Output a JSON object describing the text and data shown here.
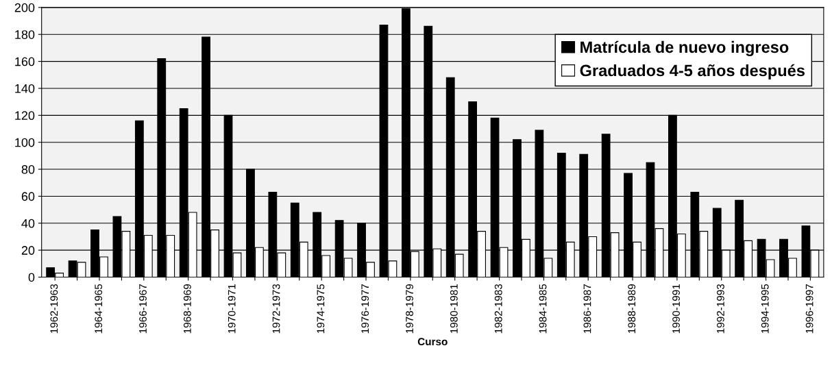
{
  "chart_data": {
    "type": "bar",
    "xlabel": "Curso",
    "categories": [
      "1962-1963",
      null,
      "1964-1965",
      null,
      "1966-1967",
      null,
      "1968-1969",
      null,
      "1970-1971",
      null,
      "1972-1973",
      null,
      "1974-1975",
      null,
      "1976-1977",
      null,
      "1978-1979",
      null,
      "1980-1981",
      null,
      "1982-1983",
      null,
      "1984-1985",
      null,
      "1986-1987",
      null,
      "1988-1989",
      null,
      "1990-1991",
      null,
      "1992-1993",
      null,
      "1994-1995",
      null,
      "1996-1997"
    ],
    "series": [
      {
        "name": "Matrícula de nuevo ingreso",
        "color": "#000000",
        "values": [
          7,
          12,
          35,
          45,
          116,
          162,
          125,
          178,
          120,
          80,
          63,
          55,
          48,
          42,
          40,
          187,
          199,
          186,
          148,
          130,
          118,
          102,
          109,
          92,
          91,
          106,
          77,
          85,
          120,
          63,
          51,
          57,
          28,
          28,
          38
        ]
      },
      {
        "name": "Graduados 4-5 años después",
        "color": "#ffffff",
        "values": [
          3,
          11,
          15,
          34,
          31,
          31,
          48,
          35,
          18,
          22,
          18,
          26,
          16,
          14,
          11,
          12,
          19,
          21,
          17,
          34,
          22,
          28,
          14,
          26,
          30,
          33,
          26,
          36,
          32,
          34,
          20,
          27,
          13,
          14,
          20
        ]
      }
    ],
    "ylim": [
      0,
      200
    ],
    "yticks": [
      0,
      20,
      40,
      60,
      80,
      100,
      120,
      140,
      160,
      180,
      200
    ],
    "grid": "y",
    "legend": "top right"
  }
}
